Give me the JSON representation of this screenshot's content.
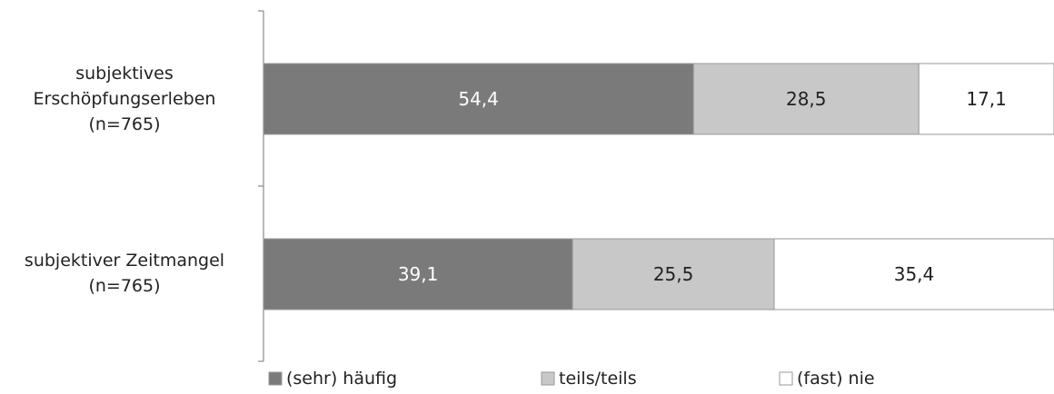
{
  "chart_data": {
    "type": "bar",
    "orientation": "horizontal",
    "stacked": true,
    "title": "",
    "xlabel": "",
    "ylabel": "",
    "xlim": [
      0,
      100
    ],
    "grid": false,
    "legend_position": "bottom",
    "categories": [
      [
        "subjektives",
        "Erschöpfungserleben",
        "(n=765)"
      ],
      [
        "subjektiver Zeitmangel",
        "(n=765)"
      ]
    ],
    "series": [
      {
        "name": "(sehr) häufig",
        "values": [
          54.4,
          39.1
        ],
        "labels": [
          "54,4",
          "39,1"
        ],
        "color": "#7a7a7a",
        "label_color": "#ffffff"
      },
      {
        "name": "teils/teils",
        "values": [
          28.5,
          25.5
        ],
        "labels": [
          "28,5",
          "25,5"
        ],
        "color": "#c8c8c8",
        "label_color": "#222222"
      },
      {
        "name": "(fast) nie",
        "values": [
          17.1,
          35.4
        ],
        "labels": [
          "17,1",
          "35,4"
        ],
        "color": "#ffffff",
        "label_color": "#222222"
      }
    ]
  }
}
